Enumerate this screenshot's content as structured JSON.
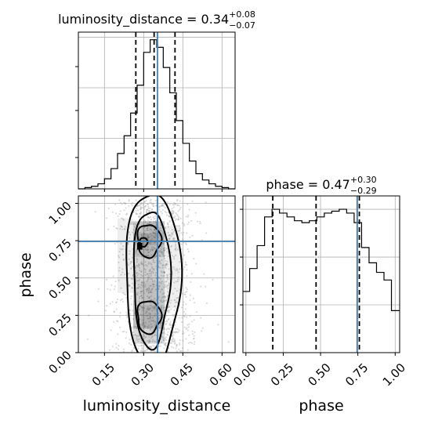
{
  "chart_data": [
    {
      "type": "histogram",
      "panel": "luminosity_distance-marginal",
      "title": {
        "param": "luminosity_distance",
        "median": "0.34",
        "plus": "+0.08",
        "minus": "−0.07"
      },
      "xlim": [
        0.05,
        0.65
      ],
      "bins": [
        0.05,
        0.075,
        0.1,
        0.125,
        0.15,
        0.175,
        0.2,
        0.225,
        0.25,
        0.275,
        0.3,
        0.325,
        0.35,
        0.375,
        0.4,
        0.425,
        0.45,
        0.475,
        0.5,
        0.525,
        0.55,
        0.575,
        0.6,
        0.625,
        0.65
      ],
      "counts": [
        0,
        1,
        2,
        4,
        8,
        16,
        28,
        42,
        60,
        82,
        108,
        118,
        112,
        96,
        76,
        54,
        36,
        22,
        12,
        7,
        4,
        2,
        1,
        0
      ],
      "quantiles": [
        0.27,
        0.34,
        0.42
      ],
      "truth": 0.353,
      "grid": true
    },
    {
      "type": "histogram",
      "panel": "phase-marginal",
      "title": {
        "param": "phase",
        "median": "0.47",
        "plus": "+0.30",
        "minus": "−0.29"
      },
      "xlim": [
        -0.02,
        1.03
      ],
      "bins": [
        -0.02,
        0.025,
        0.075,
        0.125,
        0.175,
        0.225,
        0.275,
        0.325,
        0.375,
        0.425,
        0.475,
        0.525,
        0.575,
        0.625,
        0.675,
        0.725,
        0.775,
        0.825,
        0.875,
        0.925,
        0.975,
        1.03
      ],
      "counts": [
        32,
        44,
        56,
        71,
        75,
        73,
        71,
        69,
        68,
        69,
        71,
        73,
        74,
        75,
        73,
        68,
        55,
        47,
        42,
        38,
        22
      ],
      "ylim": [
        0,
        82
      ],
      "quantiles": [
        0.18,
        0.47,
        0.76
      ],
      "truth": 0.745,
      "grid": true
    },
    {
      "type": "contour",
      "panel": "joint",
      "xlim": [
        0.05,
        0.65
      ],
      "ylim": [
        0.0,
        1.05
      ],
      "x_ticks": [
        "0.15",
        "0.30",
        "0.45",
        "0.60"
      ],
      "x_tick_values": [
        0.15,
        0.3,
        0.45,
        0.6
      ],
      "y_ticks": [
        "0.00",
        "0.25",
        "0.50",
        "0.75",
        "1.00"
      ],
      "y_tick_values": [
        0.0,
        0.25,
        0.5,
        0.75,
        1.0
      ],
      "xlabel": "luminosity_distance",
      "ylabel": "phase",
      "truth": {
        "x": 0.353,
        "y": 0.745
      },
      "grid": true
    }
  ],
  "phase_axis": {
    "ticks": [
      "0.00",
      "0.25",
      "0.50",
      "0.75",
      "1.00"
    ],
    "tick_values": [
      0.0,
      0.25,
      0.5,
      0.75,
      1.0
    ],
    "xlabel": "phase"
  },
  "colors": {
    "truth": "#4682b4",
    "lines": "#000000",
    "grid": "#b0b0b0",
    "scatter": "#9a9a9a"
  }
}
